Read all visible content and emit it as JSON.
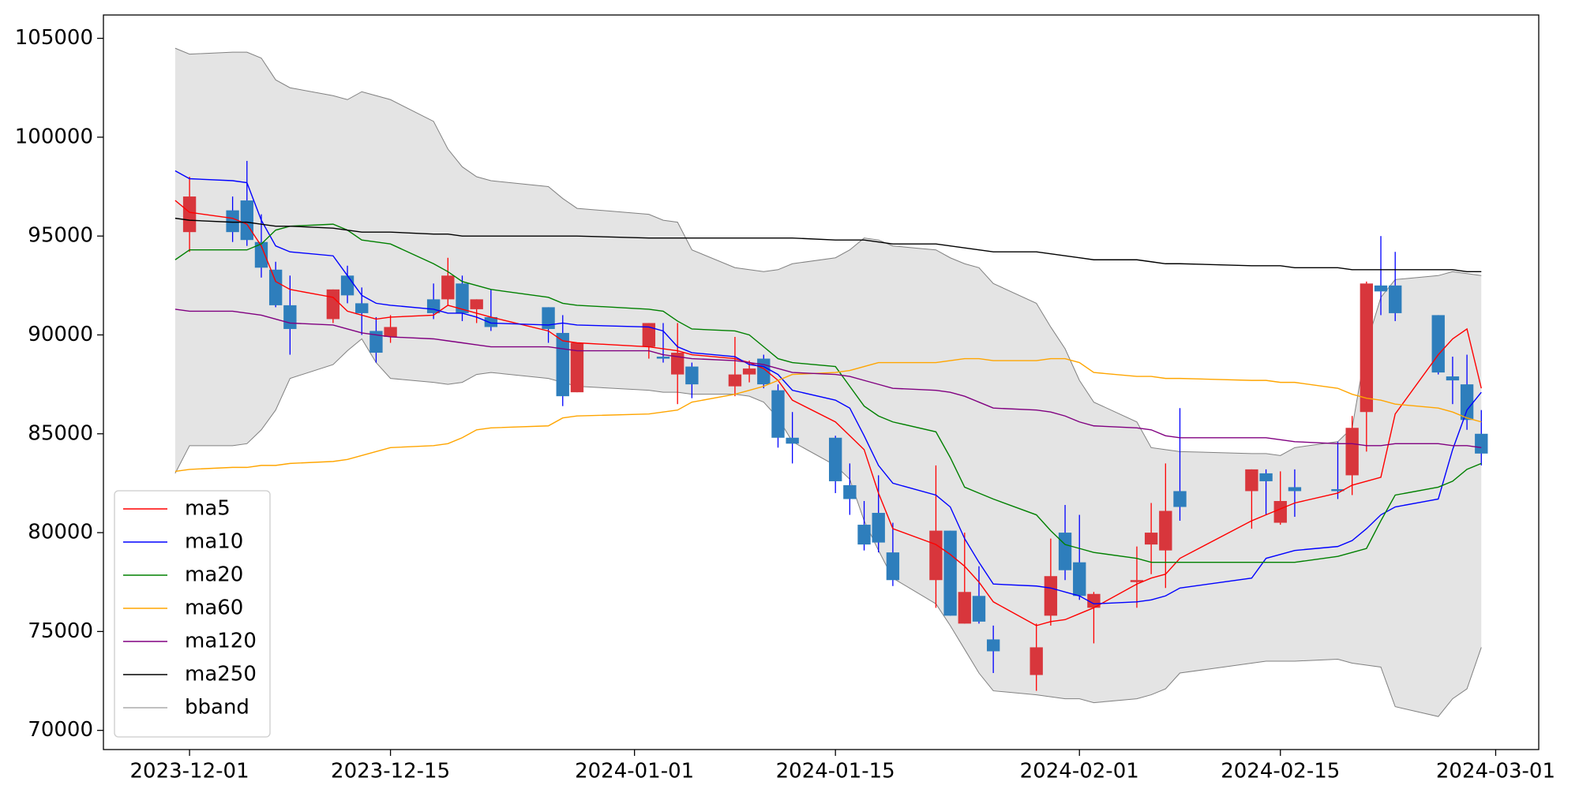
{
  "chart_data": {
    "type": "candlestick",
    "x": [
      "2023-11-30",
      "2023-12-01",
      "2023-12-04",
      "2023-12-05",
      "2023-12-06",
      "2023-12-07",
      "2023-12-08",
      "2023-12-11",
      "2023-12-12",
      "2023-12-13",
      "2023-12-14",
      "2023-12-15",
      "2023-12-18",
      "2023-12-19",
      "2023-12-20",
      "2023-12-21",
      "2023-12-22",
      "2023-12-26",
      "2023-12-27",
      "2023-12-28",
      "2024-01-02",
      "2024-01-03",
      "2024-01-04",
      "2024-01-05",
      "2024-01-08",
      "2024-01-09",
      "2024-01-10",
      "2024-01-11",
      "2024-01-12",
      "2024-01-15",
      "2024-01-16",
      "2024-01-17",
      "2024-01-18",
      "2024-01-19",
      "2024-01-22",
      "2024-01-23",
      "2024-01-24",
      "2024-01-25",
      "2024-01-26",
      "2024-01-29",
      "2024-01-30",
      "2024-01-31",
      "2024-02-01",
      "2024-02-02",
      "2024-02-05",
      "2024-02-06",
      "2024-02-07",
      "2024-02-08",
      "2024-02-13",
      "2024-02-14",
      "2024-02-15",
      "2024-02-16",
      "2024-02-19",
      "2024-02-20",
      "2024-02-21",
      "2024-02-22",
      "2024-02-23",
      "2024-02-26",
      "2024-02-27",
      "2024-02-28",
      "2024-02-29"
    ],
    "open": [
      null,
      95200,
      96300,
      96800,
      94700,
      93300,
      91500,
      90800,
      93000,
      91600,
      90200,
      89900,
      91800,
      91800,
      92600,
      91300,
      90900,
      91400,
      90100,
      87100,
      89400,
      88900,
      88000,
      88400,
      87400,
      88000,
      88800,
      87200,
      84800,
      84800,
      82400,
      80400,
      81000,
      79000,
      77600,
      80100,
      75400,
      76800,
      74600,
      72800,
      75800,
      80000,
      78500,
      76200,
      77500,
      79400,
      79100,
      82100,
      82100,
      83000,
      80500,
      82300,
      82200,
      82900,
      86100,
      92500,
      92500,
      91000,
      87900,
      87500,
      85000
    ],
    "high": [
      null,
      98000,
      97000,
      98800,
      96100,
      93700,
      93000,
      92300,
      93500,
      92400,
      90900,
      91000,
      92600,
      93900,
      93000,
      91800,
      92300,
      91400,
      91000,
      89600,
      90600,
      90600,
      90600,
      88600,
      89900,
      88700,
      89000,
      87500,
      86100,
      84900,
      83500,
      81600,
      82900,
      80500,
      83400,
      80100,
      80000,
      78300,
      75300,
      75400,
      79700,
      81400,
      80900,
      77000,
      79300,
      81500,
      83500,
      86300,
      83200,
      83200,
      83100,
      83200,
      84600,
      85900,
      92700,
      95000,
      94200,
      91000,
      88900,
      89000,
      86200
    ],
    "low": [
      null,
      94200,
      94700,
      94500,
      92900,
      91400,
      89000,
      90600,
      91600,
      90000,
      88600,
      89600,
      90800,
      91500,
      90700,
      90600,
      90200,
      89600,
      86400,
      87100,
      88800,
      88600,
      86500,
      86800,
      86900,
      87600,
      87300,
      84300,
      83500,
      82000,
      80900,
      79100,
      79000,
      77300,
      76200,
      75800,
      75400,
      75400,
      72900,
      72000,
      75300,
      77600,
      76600,
      74400,
      76200,
      77900,
      77200,
      80600,
      80200,
      80900,
      80400,
      80800,
      81700,
      81900,
      84100,
      91000,
      90700,
      88000,
      86500,
      85200,
      83400
    ],
    "close": [
      null,
      97000,
      95200,
      94800,
      93400,
      91500,
      90300,
      92300,
      92000,
      91100,
      89100,
      90400,
      91100,
      93000,
      91100,
      91800,
      90400,
      90300,
      86900,
      89600,
      90600,
      88800,
      89100,
      87500,
      88000,
      88300,
      87500,
      84800,
      84500,
      82600,
      81700,
      79400,
      79500,
      77600,
      80100,
      75800,
      77000,
      75500,
      74000,
      74200,
      77800,
      78100,
      76800,
      76900,
      77600,
      80000,
      81100,
      81300,
      83200,
      82600,
      81600,
      82100,
      82100,
      85300,
      92600,
      92200,
      91100,
      88100,
      87700,
      85700,
      84000
    ],
    "up_color": "#d8363c",
    "down_color": "#2e7ebc",
    "up_wick": "#ff0000",
    "down_wick": "#0000ff",
    "series": [
      {
        "name": "ma5",
        "color": "#ff0000",
        "values": [
          96800,
          96200,
          95900,
          95600,
          94500,
          92700,
          92300,
          91900,
          91200,
          91000,
          90800,
          90900,
          91000,
          91500,
          91300,
          91100,
          90900,
          90200,
          89700,
          89600,
          89400,
          89300,
          89200,
          89000,
          88800,
          88600,
          88300,
          87700,
          86700,
          85600,
          84900,
          84200,
          82000,
          80200,
          79400,
          78900,
          78300,
          77500,
          76500,
          75300,
          75500,
          75600,
          75900,
          76200,
          77400,
          77700,
          77900,
          78700,
          80600,
          80900,
          81200,
          81500,
          82000,
          82400,
          82600,
          82800,
          86000,
          89000,
          89800,
          90300,
          87300
        ]
      },
      {
        "name": "ma10",
        "color": "#0000ff",
        "values": [
          98300,
          97900,
          97800,
          97700,
          95800,
          94500,
          94200,
          94000,
          93000,
          92000,
          91600,
          91500,
          91300,
          91100,
          91100,
          90900,
          90600,
          90500,
          90600,
          90500,
          90400,
          90200,
          89400,
          89100,
          88900,
          88500,
          88400,
          88000,
          87200,
          86700,
          86300,
          84900,
          83400,
          82500,
          81900,
          81300,
          79700,
          78500,
          77400,
          77300,
          77200,
          77000,
          76800,
          76400,
          76500,
          76600,
          76800,
          77200,
          77700,
          78700,
          78900,
          79100,
          79300,
          79600,
          80200,
          80900,
          81300,
          81700,
          84200,
          86200,
          87100
        ]
      },
      {
        "name": "ma20",
        "color": "#008000",
        "values": [
          93800,
          94300,
          94300,
          94300,
          94600,
          95300,
          95500,
          95600,
          95300,
          94800,
          94700,
          94600,
          93600,
          93200,
          92700,
          92500,
          92300,
          91900,
          91600,
          91500,
          91300,
          91200,
          90700,
          90300,
          90200,
          90000,
          89400,
          88800,
          88600,
          88400,
          87400,
          86400,
          85900,
          85600,
          85100,
          83800,
          82300,
          82000,
          81700,
          80900,
          80100,
          79400,
          79200,
          79000,
          78700,
          78500,
          78500,
          78500,
          78500,
          78500,
          78500,
          78500,
          78800,
          79000,
          79200,
          80600,
          81900,
          82300,
          82600,
          83200,
          83500
        ]
      },
      {
        "name": "ma60",
        "color": "#ffa500",
        "values": [
          83100,
          83200,
          83300,
          83300,
          83400,
          83400,
          83500,
          83600,
          83700,
          83900,
          84100,
          84300,
          84400,
          84500,
          84800,
          85200,
          85300,
          85400,
          85800,
          85900,
          86000,
          86100,
          86200,
          86600,
          87000,
          87200,
          87400,
          87700,
          88000,
          88100,
          88200,
          88400,
          88600,
          88600,
          88600,
          88700,
          88800,
          88800,
          88700,
          88700,
          88800,
          88800,
          88600,
          88100,
          87900,
          87900,
          87800,
          87800,
          87700,
          87700,
          87600,
          87600,
          87300,
          87000,
          86800,
          86700,
          86500,
          86300,
          86100,
          85800,
          85600
        ]
      },
      {
        "name": "ma120",
        "color": "#800080",
        "values": [
          91300,
          91200,
          91200,
          91100,
          91000,
          90800,
          90600,
          90500,
          90300,
          90100,
          90000,
          89900,
          89800,
          89700,
          89600,
          89500,
          89400,
          89400,
          89300,
          89200,
          89200,
          89000,
          88900,
          88800,
          88700,
          88600,
          88500,
          88300,
          88100,
          88000,
          87900,
          87700,
          87500,
          87300,
          87200,
          87100,
          86900,
          86600,
          86300,
          86200,
          86100,
          85900,
          85600,
          85400,
          85300,
          85200,
          84900,
          84800,
          84800,
          84800,
          84700,
          84600,
          84500,
          84500,
          84400,
          84400,
          84500,
          84500,
          84400,
          84400,
          84300
        ]
      },
      {
        "name": "ma250",
        "color": "#000000",
        "values": [
          95900,
          95800,
          95700,
          95700,
          95600,
          95500,
          95500,
          95400,
          95300,
          95200,
          95200,
          95200,
          95100,
          95100,
          95000,
          95000,
          95000,
          95000,
          95000,
          95000,
          94900,
          94900,
          94900,
          94900,
          94900,
          94900,
          94900,
          94900,
          94900,
          94800,
          94800,
          94800,
          94700,
          94600,
          94600,
          94500,
          94400,
          94300,
          94200,
          94200,
          94100,
          94000,
          93900,
          93800,
          93800,
          93700,
          93600,
          93600,
          93500,
          93500,
          93500,
          93400,
          93400,
          93300,
          93300,
          93300,
          93300,
          93300,
          93300,
          93200,
          93200
        ]
      }
    ],
    "bband": {
      "name": "bband",
      "color": "#808080",
      "fill": "#e4e4e4",
      "upper": [
        104500,
        104200,
        104300,
        104300,
        104000,
        102900,
        102500,
        102100,
        101900,
        102300,
        102100,
        101900,
        100800,
        99400,
        98500,
        98000,
        97800,
        97500,
        96900,
        96400,
        96100,
        95800,
        95700,
        94300,
        93400,
        93300,
        93200,
        93300,
        93600,
        93900,
        94300,
        94900,
        94800,
        94500,
        94300,
        93900,
        93600,
        93400,
        92600,
        91600,
        90400,
        89300,
        87700,
        86600,
        85600,
        84300,
        84200,
        84100,
        84000,
        84000,
        83900,
        84300,
        84600,
        85300,
        89500,
        91900,
        92800,
        93000,
        93200,
        93100,
        93000
      ],
      "lower": [
        83000,
        84400,
        84400,
        84500,
        85200,
        86200,
        87800,
        88500,
        89200,
        89800,
        88600,
        87800,
        87600,
        87500,
        87600,
        88000,
        88100,
        87800,
        87600,
        87400,
        87200,
        87100,
        87100,
        87000,
        87000,
        86900,
        86600,
        85800,
        84600,
        83400,
        82700,
        80600,
        79100,
        77700,
        76400,
        75300,
        74100,
        72900,
        72000,
        71800,
        71700,
        71600,
        71600,
        71400,
        71600,
        71800,
        72100,
        72900,
        73400,
        73500,
        73500,
        73500,
        73600,
        73400,
        73300,
        73200,
        71200,
        70700,
        71600,
        72100,
        74200
      ]
    },
    "xlim": [
      "2023-11-25",
      "2024-03-04"
    ],
    "xticks": [
      "2023-12-01",
      "2023-12-15",
      "2024-01-01",
      "2024-01-15",
      "2024-02-01",
      "2024-02-15",
      "2024-03-01"
    ],
    "ylim": [
      69030,
      106180
    ],
    "yticks": [
      70000,
      75000,
      80000,
      85000,
      90000,
      95000,
      100000,
      105000
    ],
    "legend": "lower left"
  }
}
